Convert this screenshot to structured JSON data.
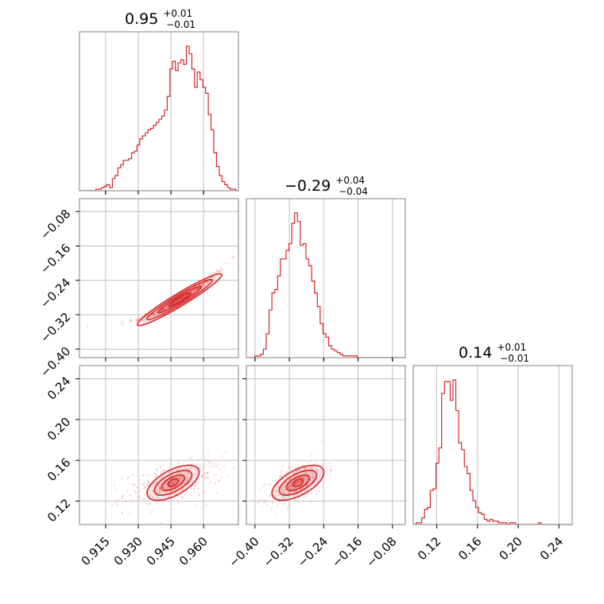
{
  "chart_data": {
    "type": "corner",
    "color": "#d62728",
    "parameters": [
      {
        "median": "0.95",
        "plus": "+0.01",
        "minus": "−0.01",
        "range": [
          0.903,
          0.976
        ],
        "ticks": [
          0.915,
          0.93,
          0.945,
          0.96
        ],
        "tick_labels": [
          "0.915",
          "0.930",
          "0.945",
          "0.960"
        ],
        "hist": [
          0,
          0,
          0,
          0,
          0,
          0,
          1,
          1,
          2,
          3,
          4,
          2,
          8,
          10,
          15,
          17,
          20,
          20,
          21,
          25,
          26,
          30,
          34,
          36,
          38,
          40,
          41,
          43,
          45,
          47,
          49,
          53,
          62,
          80,
          85,
          79,
          84,
          86,
          83,
          95,
          90,
          80,
          68,
          78,
          73,
          68,
          64,
          50,
          40,
          25,
          16,
          10,
          6,
          4,
          2,
          1,
          1,
          0
        ]
      },
      {
        "median": "−0.29",
        "plus": "+0.04",
        "minus": "−0.04",
        "range": [
          -0.42,
          -0.05
        ],
        "ticks": [
          -0.4,
          -0.32,
          -0.24,
          -0.16,
          -0.08
        ],
        "tick_labels": [
          "−0.40",
          "−0.32",
          "−0.24",
          "−0.16",
          "−0.08"
        ],
        "hist": [
          0,
          0,
          0,
          1,
          1,
          2,
          5,
          14,
          28,
          38,
          40,
          48,
          58,
          58,
          63,
          67,
          79,
          85,
          80,
          66,
          67,
          58,
          54,
          45,
          38,
          30,
          20,
          14,
          12,
          7,
          5,
          4,
          3,
          2,
          1,
          1,
          1,
          1,
          1,
          0,
          0,
          0,
          0,
          0,
          0,
          0,
          0,
          0,
          0,
          0,
          0,
          0,
          0,
          0,
          0,
          0
        ]
      },
      {
        "median": "0.14",
        "plus": "+0.01",
        "minus": "−0.01",
        "range": [
          0.097,
          0.253
        ],
        "ticks": [
          0.12,
          0.16,
          0.2,
          0.24
        ],
        "tick_labels": [
          "0.12",
          "0.16",
          "0.20",
          "0.24"
        ],
        "hist": [
          0,
          1,
          1,
          4,
          9,
          10,
          20,
          21,
          36,
          45,
          77,
          84,
          84,
          73,
          85,
          67,
          48,
          44,
          34,
          30,
          20,
          14,
          10,
          7,
          6,
          3,
          2,
          3,
          2,
          2,
          1,
          1,
          1,
          0,
          1,
          1,
          0,
          0,
          0,
          0,
          0,
          0,
          0,
          0,
          1,
          0,
          0,
          0,
          0,
          0,
          0,
          0,
          0,
          0,
          0,
          0
        ]
      }
    ],
    "grid": true,
    "panels": [
      {
        "row": 1,
        "col": 0,
        "x": 0,
        "y": 1,
        "slope_x": 4.9,
        "corr": 0.985,
        "sx": 0.0105,
        "sy": 0.032,
        "mx": 0.949,
        "my": -0.285
      },
      {
        "row": 2,
        "col": 0,
        "x": 0,
        "y": 2,
        "corr": 0.5,
        "sx": 0.0112,
        "sy": 0.011,
        "mx": 0.946,
        "my": 0.138
      },
      {
        "row": 2,
        "col": 1,
        "x": 1,
        "y": 2,
        "corr": 0.55,
        "sx": 0.034,
        "sy": 0.011,
        "mx": -0.3,
        "my": 0.138
      }
    ]
  }
}
